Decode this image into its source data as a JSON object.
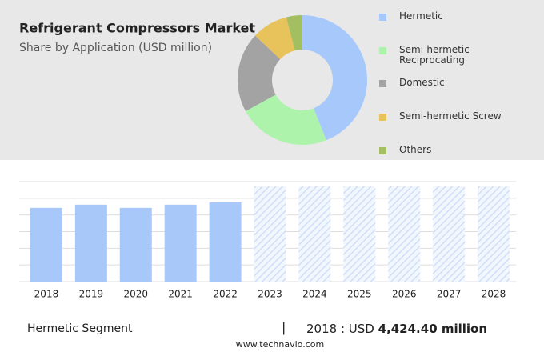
{
  "chart_data": [
    {
      "type": "pie",
      "title": "Refrigerant Compressors Market",
      "subtitle": "Share by Application (USD million)",
      "categories": [
        "Hermetic",
        "Semi-hermetic Reciprocating",
        "Domestic",
        "Semi-hermetic Screw",
        "Others"
      ],
      "values": [
        44,
        23,
        20,
        9,
        4
      ],
      "colors": [
        "#a6c8fb",
        "#aef3ac",
        "#a3a3a3",
        "#e8c25a",
        "#a3bf62"
      ]
    },
    {
      "type": "bar",
      "categories": [
        "2018",
        "2019",
        "2020",
        "2021",
        "2022",
        "2023",
        "2024",
        "2025",
        "2026",
        "2027",
        "2028"
      ],
      "values": [
        4424.4,
        4615,
        4424,
        4615,
        4757,
        null,
        null,
        null,
        null,
        null,
        null
      ],
      "color": "#a8c8fa",
      "ylim": [
        0,
        6000
      ],
      "yticks": [
        0,
        1000,
        2000,
        3000,
        4000,
        5000,
        6000
      ],
      "grid": true
    }
  ],
  "footer": {
    "segment": "Hermetic Segment",
    "separator": "|",
    "year_label": "2018 : USD",
    "value_label": "4,424.40 million",
    "source": "www.technavio.com"
  }
}
